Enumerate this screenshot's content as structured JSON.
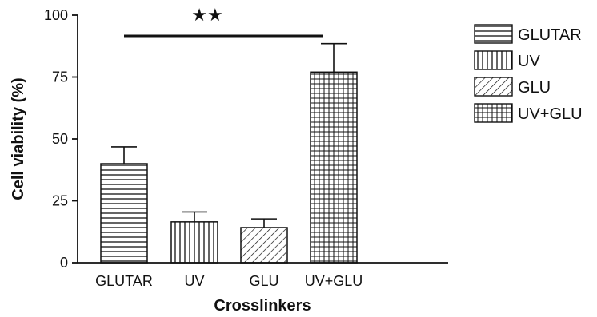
{
  "chart_data": {
    "type": "bar",
    "title": "",
    "xlabel": "Crosslinkers",
    "ylabel": "Cell viability (%)",
    "ylim": [
      0,
      100
    ],
    "yticks": [
      "0",
      "25",
      "50",
      "75",
      "100"
    ],
    "categories": [
      "GLUTAR",
      "UV",
      "GLU",
      "UV+GLU"
    ],
    "values": [
      40,
      16.5,
      14.2,
      77
    ],
    "errors": [
      6.8,
      4,
      3.5,
      11.5
    ],
    "patterns": [
      "horizontal",
      "vertical",
      "diagonal",
      "grid"
    ],
    "legend": {
      "position": "top-right",
      "entries": [
        "GLUTAR",
        "UV",
        "GLU",
        "UV+GLU"
      ]
    },
    "significance": {
      "label": "★★",
      "from": "GLUTAR",
      "to": "UV+GLU"
    },
    "colors": {
      "ink": "#111111",
      "fill": "#ffffff"
    }
  }
}
